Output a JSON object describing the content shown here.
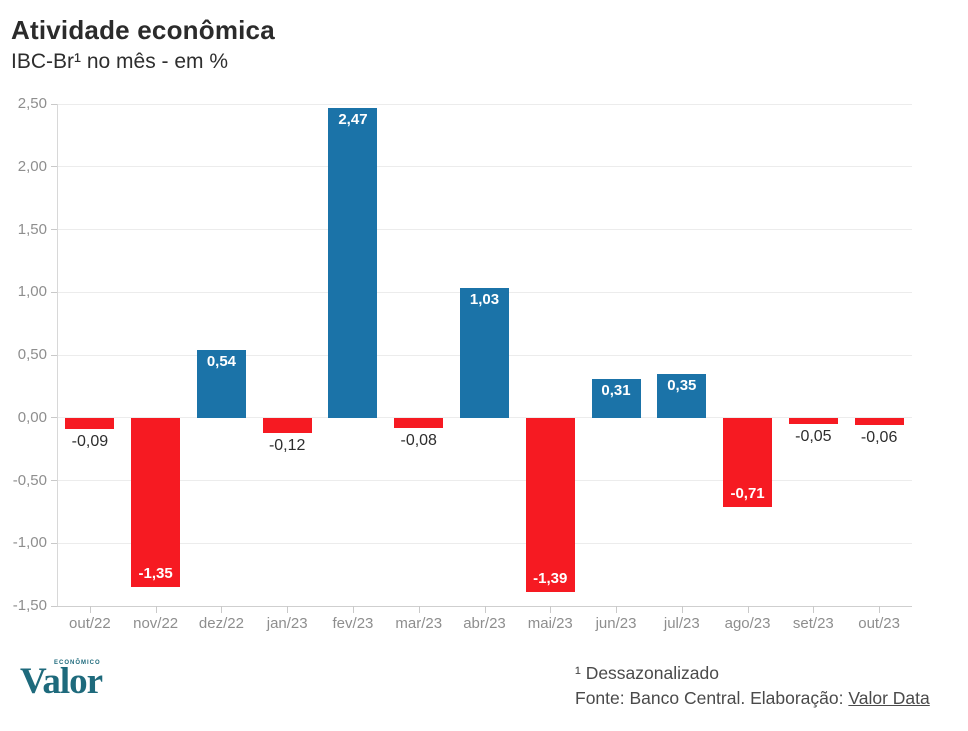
{
  "chart_data": {
    "type": "bar",
    "title": "Atividade econômica",
    "subtitle": "IBC-Br¹ no mês - em %",
    "categories": [
      "out/22",
      "nov/22",
      "dez/22",
      "jan/23",
      "fev/23",
      "mar/23",
      "abr/23",
      "mai/23",
      "jun/23",
      "jul/23",
      "ago/23",
      "set/23",
      "out/23"
    ],
    "values": [
      -0.09,
      -1.35,
      0.54,
      -0.12,
      2.47,
      -0.08,
      1.03,
      -1.39,
      0.31,
      0.35,
      -0.71,
      -0.05,
      -0.06
    ],
    "value_labels": [
      "-0,09",
      "-1,35",
      "0,54",
      "-0,12",
      "2,47",
      "-0,08",
      "1,03",
      "-1,39",
      "0,31",
      "0,35",
      "-0,71",
      "-0,05",
      "-0,06"
    ],
    "ylim": [
      -1.5,
      2.5
    ],
    "ytick_step": 0.5,
    "ytick_labels": [
      "2,50",
      "2,00",
      "1,50",
      "1,00",
      "0,50",
      "0,00",
      "-0,50",
      "-1,00",
      "-1,50"
    ],
    "grid": "horizontal",
    "legend": "none",
    "colors": {
      "positive": "#1b73a8",
      "negative": "#f61a22",
      "gridline": "#ececec",
      "axis": "#d8d8d8",
      "tick": "#c9c9c9",
      "axis_text": "#8e8e8e"
    }
  },
  "footer": {
    "logo": {
      "top": "ECONÔMICO",
      "main": "Valor",
      "color": "#1e6a7c"
    },
    "footnote": "¹ Dessazonalizado",
    "source_prefix": "Fonte: Banco Central. Elaboração: ",
    "source_link": "Valor Data"
  }
}
